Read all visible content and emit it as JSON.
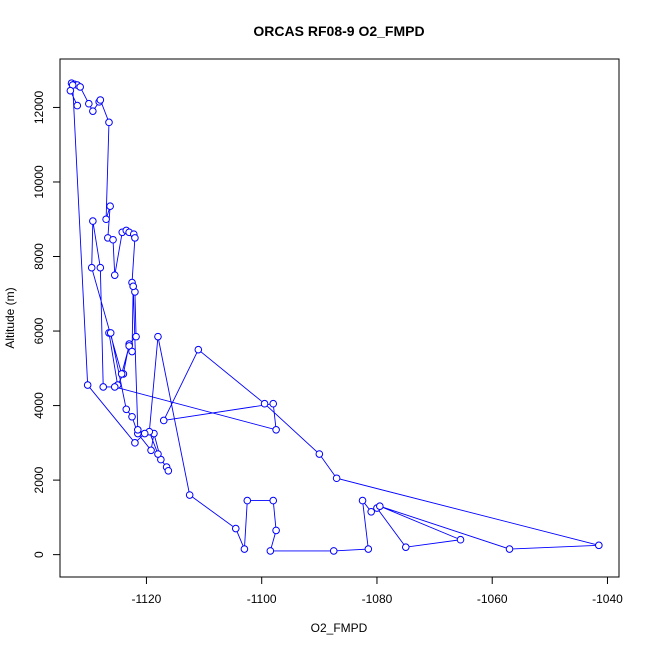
{
  "chart_data": {
    "type": "scatter",
    "title": "ORCAS RF08-9 O2_FMPD",
    "xlabel": "O2_FMPD",
    "ylabel": "Altitude (m)",
    "xlim": [
      -1135,
      -1038
    ],
    "ylim": [
      -600,
      13300
    ],
    "xticks": [
      -1120,
      -1100,
      -1080,
      -1060,
      -1040
    ],
    "yticks": [
      0,
      2000,
      4000,
      6000,
      8000,
      10000,
      12000
    ],
    "grid": false,
    "legend": "none",
    "connected": true,
    "series_color": "#0000ff",
    "x": [
      -1133.0,
      -1132.5,
      -1132.0,
      -1131.5,
      -1130.0,
      -1129.3,
      -1128.2,
      -1128.0,
      -1126.5,
      -1127.0,
      -1126.3,
      -1126.7,
      -1125.8,
      -1125.5,
      -1124.2,
      -1123.5,
      -1123.0,
      -1122.2,
      -1122.0,
      -1122.5,
      -1122.0,
      -1121.8,
      -1123.0,
      -1124.0,
      -1125.0,
      -1126.5,
      -1126.2,
      -1123.5,
      -1122.5,
      -1121.5,
      -1119.2,
      -1118.7,
      -1117.5,
      -1116.5,
      -1116.2,
      -1118.0,
      -1119.5,
      -1118.0,
      -1112.5,
      -1104.5,
      -1103.0,
      -1102.5,
      -1098.0,
      -1097.5,
      -1098.5,
      -1087.5,
      -1081.5,
      -1082.5,
      -1081.0,
      -1080.0,
      -1075.0,
      -1065.5,
      -1079.5,
      -1057.0,
      -1041.5,
      -1087.0,
      -1090.0,
      -1099.5,
      -1111.0,
      -1117.0,
      -1098.0,
      -1097.5,
      -1125.5,
      -1127.5,
      -1128.0,
      -1129.3,
      -1129.5,
      -1124.3,
      -1123.0,
      -1122.5,
      -1122.3,
      -1121.5,
      -1120.3,
      -1122.0,
      -1130.2,
      -1132.8,
      -1133.2,
      -1132.0
    ],
    "y": [
      12650,
      12620,
      12600,
      12550,
      12100,
      11900,
      12150,
      12200,
      11600,
      9000,
      9350,
      8500,
      8450,
      7500,
      8650,
      8700,
      8650,
      8600,
      8500,
      7300,
      7050,
      5850,
      5650,
      4850,
      4550,
      5950,
      5950,
      3900,
      3700,
      3250,
      2800,
      3250,
      2550,
      2350,
      2250,
      2700,
      3300,
      5850,
      1600,
      700,
      150,
      1450,
      1450,
      650,
      100,
      100,
      150,
      1450,
      1150,
      1250,
      200,
      400,
      1300,
      150,
      250,
      2050,
      2700,
      4050,
      5500,
      3600,
      4050,
      3350,
      4500,
      4500,
      7700,
      8950,
      7700,
      4850,
      5600,
      5450,
      7200,
      3350,
      3250,
      3000,
      4550,
      12600,
      12450,
      12050
    ]
  }
}
